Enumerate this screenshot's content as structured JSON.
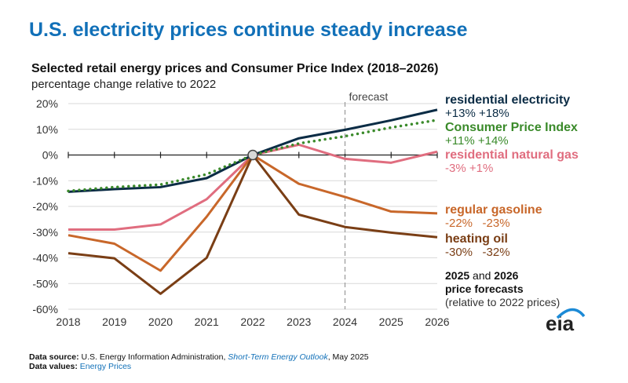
{
  "header": {
    "title": "U.S. electricity prices continue steady increase",
    "subtitle": "Selected retail energy prices and Consumer Price Index (2018–2026)",
    "units": "percentage change relative to 2022"
  },
  "chart_data": {
    "type": "line",
    "title": "Selected retail energy prices and Consumer Price Index (2018–2026)",
    "ylabel": "percentage change relative to 2022",
    "x": [
      2018,
      2019,
      2020,
      2021,
      2022,
      2023,
      2024,
      2025,
      2026
    ],
    "x_tick_labels": [
      "2018",
      "2019",
      "2020",
      "2021",
      "2022",
      "2023",
      "2024",
      "2025",
      "2026"
    ],
    "y_tick_labels": [
      "20%",
      "10%",
      "0%",
      "-10%",
      "-20%",
      "-30%",
      "-40%",
      "-50%",
      "-60%"
    ],
    "ylim": [
      -60,
      20
    ],
    "grid": true,
    "forecast_label": "forecast",
    "forecast_start": 2024,
    "series": [
      {
        "name": "residential electricity",
        "note": "+13% +18%",
        "color": "#0b2c45",
        "style": "solid",
        "values": [
          -14.3,
          -13.3,
          -12.5,
          -9,
          0,
          6.5,
          9.8,
          13.5,
          17.6
        ]
      },
      {
        "name": "Consumer Price Index",
        "note": "+11% +14%",
        "color": "#3a8a2a",
        "style": "dotted",
        "values": [
          -14,
          -12.5,
          -11.5,
          -7.5,
          0,
          4.5,
          7.3,
          10.7,
          13.6
        ]
      },
      {
        "name": "residential natural gas",
        "note": "-3% +1%",
        "color": "#e06d7f",
        "style": "solid",
        "values": [
          -29,
          -29,
          -27,
          -17.2,
          0,
          4,
          -1.5,
          -3,
          1.3
        ]
      },
      {
        "name": "regular gasoline",
        "note": "-22%   -23%",
        "color": "#c8672a",
        "style": "solid",
        "values": [
          -31.2,
          -34.5,
          -45,
          -24,
          0,
          -11.2,
          -16.3,
          -22,
          -22.7
        ]
      },
      {
        "name": "heating oil",
        "note": "-30%   -32%",
        "color": "#7a3e15",
        "style": "solid",
        "values": [
          -38.2,
          -40.2,
          -54,
          -40,
          0,
          -23.2,
          -28,
          -30.2,
          -32
        ]
      }
    ],
    "annotation": {
      "bold1": "2025",
      "mid": " and ",
      "bold2": "2026",
      "line2": "price forecasts",
      "line3": "(relative to 2022 prices)"
    }
  },
  "footer": {
    "source_label": "Data source:",
    "source_text": " U.S. Energy Information Administration, ",
    "source_link": "Short-Term Energy Outlook",
    "source_date": ", May 2025",
    "values_label": "Data values:",
    "values_link": "Energy Prices"
  },
  "logo": "eia"
}
